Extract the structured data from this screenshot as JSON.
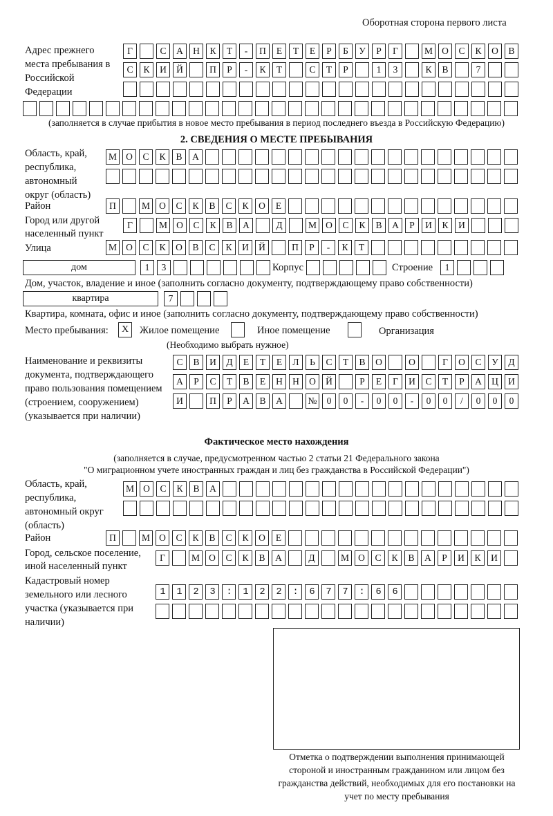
{
  "header": "Оборотная сторона первого листа",
  "prev_address": {
    "label": "Адрес прежнего места пребывания в Российской Федерации",
    "rows": [
      "Г САНКТ-ПЕТЕРБУРГ МОСКОВ",
      "СКИЙ ПР-КТ СТР 13 КВ 7  ",
      "                        ",
      "                              "
    ],
    "note": "(заполняется в случае прибытия в новое место пребывания в период последнего въезда в Российскую Федерацию)"
  },
  "section2": {
    "title": "2. СВЕДЕНИЯ О МЕСТЕ ПРЕБЫВАНИЯ",
    "region_label": "Область, край, республика, автономный округ (область)",
    "region_rows": [
      "МОСКВА                   ",
      "                         "
    ],
    "district_label": "Район",
    "district_row": "П МОСКВСКОЕ              ",
    "city_label": "Город или другой населенный пункт",
    "city_row": "Г МОСКВА Д МОСКВАРИКИ   ",
    "street_label": "Улица",
    "street_row": "МОСКОВСКИЙ ПР-КТ         ",
    "house_type": "дом",
    "house_cells": "13      ",
    "building_label": "Корпус",
    "building_cells": "     ",
    "structure_label": "Строение",
    "structure_cells": "1   ",
    "house_note": "Дом, участок, владение и иное (заполнить согласно документу, подтверждающему право собственности)",
    "apt_type": "квартира",
    "apt_cells": "7   ",
    "apt_note": "Квартира, комната, офис и иное (заполнить согласно документу, подтверждающему право собственности)",
    "stay_label": "Место пребывания:",
    "stay_options": [
      {
        "label": "Жилое помещение",
        "mark": "X"
      },
      {
        "label": "Иное помещение",
        "mark": ""
      },
      {
        "label": "Организация",
        "mark": ""
      }
    ],
    "stay_note": "(Необходимо выбрать нужное)",
    "doc_label": "Наименование и реквизиты документа, подтверждающего право пользования помещением (строением, сооружением) (указывается при наличии)",
    "doc_rows": [
      "СВИДЕТЕЛЬСТВО О ГОСУД",
      "АРСТВЕННОЙ РЕГИСТРАЦИ",
      "И ПРАВА №00-00-00/000"
    ]
  },
  "actual": {
    "title": "Фактическое место нахождения",
    "note1": "(заполняется в случае, предусмотренном частью 2 статьи 21 Федерального закона",
    "note2": "\"О миграционном учете иностранных граждан и лиц без гражданства в Российской Федерации\")",
    "region_label": "Область, край, республика, автономный округ (область)",
    "region_rows": [
      "МОСКВА                  ",
      "                        "
    ],
    "district_label": "Район",
    "district_row": "П МОСКВСКОЕ              ",
    "city_label": "Город, сельское поселение, иной населенный пункт",
    "city_row": "Г МОСКВА Д МОСКВАРИКИ ",
    "cadastre_label": "Кадастровый номер земельного или лесного участка (указывается при наличии)",
    "cadastre_rows": [
      "1123:122:677:66       ",
      "                      "
    ]
  },
  "stamp_caption": "Отметка о подтверждении выполнения принимающей стороной и иностранным гражданином или лицом без гражданства действий, необходимых для его постановки на учет по месту пребывания"
}
